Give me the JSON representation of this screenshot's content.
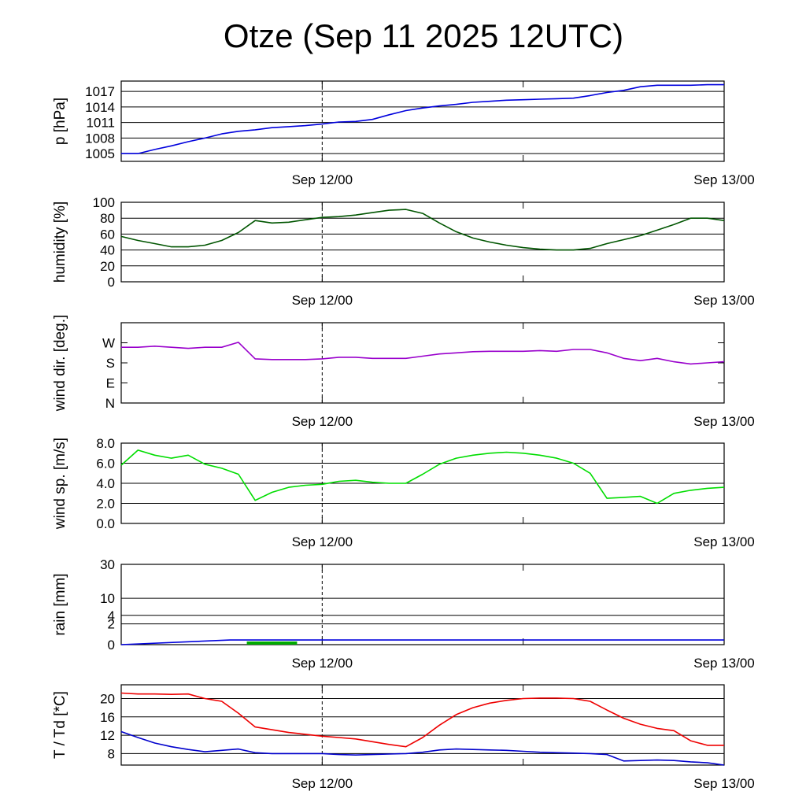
{
  "title": "Otze (Sep 11 2025 12UTC)",
  "x_tick_labels": [
    "Sep 12/00",
    "Sep 13/00"
  ],
  "colors": {
    "pressure": "#0000dd",
    "humidity": "#005500",
    "wind_dir": "#9900cc",
    "wind_speed": "#00dd00",
    "rain_total": "#0000dd",
    "rain_shade": "#00aa00",
    "temperature": "#ee0000",
    "dewpoint": "#0000cc"
  },
  "chart_data": [
    {
      "type": "line",
      "ylabel": "p [hPa]",
      "x_unit": "hours since Sep 11 12UTC",
      "xlim": [
        0,
        36
      ],
      "ylim": [
        1003.5,
        1019
      ],
      "yticks": [
        1005,
        1008,
        1011,
        1014,
        1017
      ],
      "ytick_labels": [
        "1005",
        "1008",
        "1011",
        "1014",
        "1017"
      ],
      "grid": true,
      "x": [
        0,
        1,
        2,
        3,
        4,
        5,
        6,
        7,
        8,
        9,
        10,
        11,
        12,
        13,
        14,
        15,
        16,
        17,
        18,
        19,
        20,
        21,
        22,
        23,
        24,
        25,
        26,
        27,
        28,
        29,
        30,
        31,
        32,
        33,
        34,
        35,
        36
      ],
      "series": [
        {
          "values": [
            1005,
            1005,
            1005.8,
            1006.5,
            1007.3,
            1008,
            1008.8,
            1009.3,
            1009.6,
            1010,
            1010.2,
            1010.4,
            1010.7,
            1011.1,
            1011.2,
            1011.6,
            1012.5,
            1013.3,
            1013.8,
            1014.2,
            1014.5,
            1014.9,
            1015.1,
            1015.3,
            1015.4,
            1015.5,
            1015.6,
            1015.7,
            1016.2,
            1016.8,
            1017.2,
            1017.9,
            1018.2,
            1018.2,
            1018.2,
            1018.3,
            1018.3
          ]
        }
      ]
    },
    {
      "type": "line",
      "ylabel": "humidity [%]",
      "x_unit": "hours since Sep 11 12UTC",
      "xlim": [
        0,
        36
      ],
      "ylim": [
        0,
        100
      ],
      "yticks": [
        0,
        20,
        40,
        60,
        80,
        100
      ],
      "ytick_labels": [
        "0",
        "20",
        "40",
        "60",
        "80",
        "100"
      ],
      "grid": true,
      "x": [
        0,
        1,
        2,
        3,
        4,
        5,
        6,
        7,
        8,
        9,
        10,
        11,
        12,
        13,
        14,
        15,
        16,
        17,
        18,
        19,
        20,
        21,
        22,
        23,
        24,
        25,
        26,
        27,
        28,
        29,
        30,
        31,
        32,
        33,
        34,
        35,
        36
      ],
      "series": [
        {
          "values": [
            57,
            52,
            48,
            44,
            44,
            46,
            52,
            62,
            77,
            74,
            75,
            78,
            81,
            82,
            84,
            87,
            90,
            91,
            86,
            74,
            63,
            55,
            50,
            46,
            43,
            41,
            40,
            40,
            42,
            48,
            53,
            58,
            65,
            72,
            80,
            80,
            77
          ]
        }
      ]
    },
    {
      "type": "line",
      "ylabel": "wind dir. [deg.]",
      "x_unit": "hours since Sep 11 12UTC",
      "xlim": [
        0,
        36
      ],
      "ylim": [
        0,
        360
      ],
      "yticks": [
        0,
        90,
        180,
        270
      ],
      "ytick_labels": [
        "N",
        "E",
        "S",
        "W"
      ],
      "grid": false,
      "x": [
        0,
        1,
        2,
        3,
        4,
        5,
        6,
        7,
        8,
        9,
        10,
        11,
        12,
        13,
        14,
        15,
        16,
        17,
        18,
        19,
        20,
        21,
        22,
        23,
        24,
        25,
        26,
        27,
        28,
        29,
        30,
        31,
        32,
        33,
        34,
        35,
        36
      ],
      "series": [
        {
          "values": [
            250,
            250,
            255,
            250,
            245,
            250,
            250,
            272,
            198,
            195,
            195,
            195,
            198,
            205,
            205,
            200,
            200,
            200,
            210,
            220,
            225,
            230,
            232,
            232,
            232,
            235,
            232,
            240,
            240,
            225,
            200,
            190,
            200,
            185,
            175,
            180,
            185
          ]
        }
      ]
    },
    {
      "type": "line",
      "ylabel": "wind sp. [m/s]",
      "x_unit": "hours since Sep 11 12UTC",
      "xlim": [
        0,
        36
      ],
      "ylim": [
        0,
        8
      ],
      "yticks": [
        0,
        2,
        4,
        6,
        8
      ],
      "ytick_labels": [
        "0.0",
        "2.0",
        "4.0",
        "6.0",
        "8.0"
      ],
      "grid": true,
      "x": [
        0,
        1,
        2,
        3,
        4,
        5,
        6,
        7,
        8,
        9,
        10,
        11,
        12,
        13,
        14,
        15,
        16,
        17,
        18,
        19,
        20,
        21,
        22,
        23,
        24,
        25,
        26,
        27,
        28,
        29,
        30,
        31,
        32,
        33,
        34,
        35,
        36
      ],
      "series": [
        {
          "values": [
            5.8,
            7.3,
            6.8,
            6.5,
            6.8,
            5.9,
            5.5,
            4.9,
            2.3,
            3.1,
            3.6,
            3.8,
            3.9,
            4.2,
            4.3,
            4.1,
            4.0,
            4.0,
            4.9,
            5.9,
            6.5,
            6.8,
            7.0,
            7.1,
            7.0,
            6.8,
            6.5,
            6.0,
            5.0,
            2.5,
            2.6,
            2.7,
            2.0,
            3.0,
            3.3,
            3.5,
            3.6
          ]
        }
      ]
    },
    {
      "type": "line",
      "ylabel": "rain [mm]",
      "x_unit": "hours since Sep 11 12UTC",
      "xlim": [
        0,
        36
      ],
      "scale": "sqrt",
      "ylim": [
        0,
        30
      ],
      "yticks": [
        0,
        2,
        4,
        10,
        30
      ],
      "ytick_labels": [
        "0",
        "2",
        "4",
        "10",
        "30"
      ],
      "grid": true,
      "x": [
        0,
        6.5,
        36
      ],
      "series": [
        {
          "values": [
            0,
            0.1,
            0.1
          ]
        }
      ],
      "shaded_interval": [
        7.5,
        10.5
      ]
    },
    {
      "type": "line",
      "ylabel": "T / Td [*C]",
      "x_unit": "hours since Sep 11 12UTC",
      "xlim": [
        0,
        36
      ],
      "ylim": [
        5.5,
        23
      ],
      "yticks": [
        8,
        12,
        16,
        20
      ],
      "ytick_labels": [
        "8",
        "12",
        "16",
        "20"
      ],
      "grid": true,
      "x": [
        0,
        1,
        2,
        3,
        4,
        5,
        6,
        7,
        8,
        9,
        10,
        11,
        12,
        13,
        14,
        15,
        16,
        17,
        18,
        19,
        20,
        21,
        22,
        23,
        24,
        25,
        26,
        27,
        28,
        29,
        30,
        31,
        32,
        33,
        34,
        35,
        36
      ],
      "series": [
        {
          "values": [
            21.2,
            21,
            21,
            20.9,
            21,
            20,
            19.4,
            16.8,
            13.8,
            13.2,
            12.6,
            12.2,
            11.8,
            11.5,
            11.2,
            10.6,
            10.0,
            9.5,
            11.5,
            14.2,
            16.5,
            18.0,
            19.0,
            19.6,
            20.0,
            20.1,
            20.1,
            20.0,
            19.4,
            17.5,
            15.7,
            14.4,
            13.5,
            13.0,
            10.8,
            9.8,
            9.8
          ]
        },
        {
          "values": [
            12.8,
            11.5,
            10.3,
            9.5,
            8.9,
            8.4,
            8.7,
            9.0,
            8.2,
            8.0,
            8.0,
            8.0,
            8.0,
            7.8,
            7.7,
            7.8,
            7.9,
            8.0,
            8.3,
            8.8,
            9.0,
            8.9,
            8.8,
            8.7,
            8.5,
            8.3,
            8.2,
            8.1,
            8.0,
            7.8,
            6.4,
            6.5,
            6.6,
            6.5,
            6.2,
            6.0,
            5.5
          ]
        }
      ]
    }
  ]
}
